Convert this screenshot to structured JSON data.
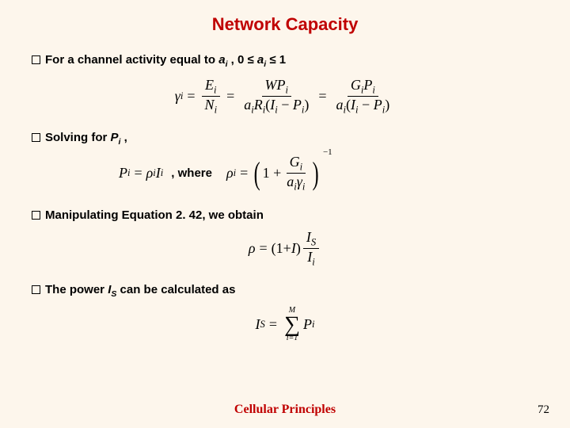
{
  "colors": {
    "background": "#fdf6ec",
    "title": "#c00000",
    "text": "#000000",
    "footer": "#c00000"
  },
  "fonts": {
    "body_family": "Arial",
    "math_family": "Times New Roman",
    "title_size_pt": 22,
    "bullet_size_pt": 15,
    "math_size_pt": 18,
    "footer_size_pt": 16
  },
  "title": "Network Capacity",
  "bullets": {
    "b1_prefix": "For a channel activity equal to ",
    "b1_var": "a",
    "b1_sub": "i",
    "b1_mid": " , 0 ≤ ",
    "b1_var2": "a",
    "b1_sub2": "i",
    "b1_suffix": " ≤ 1",
    "b2_prefix": "Solving for ",
    "b2_var": "P",
    "b2_sub": "i",
    "b2_suffix": " ,",
    "b3": "Manipulating Equation 2. 42, we obtain",
    "b4_prefix": "The power ",
    "b4_var": "I",
    "b4_sub": "S",
    "b4_suffix": " can be calculated as"
  },
  "eq1": {
    "lhs_var": "γ",
    "lhs_sub": "i",
    "f1_num_var": "E",
    "f1_num_sub": "i",
    "f1_den_var": "N",
    "f1_den_sub": "i",
    "f2_num_a": "W",
    "f2_num_b": "P",
    "f2_num_sub": "i",
    "f2_den_a": "a",
    "f2_den_a_sub": "i",
    "f2_den_b": "R",
    "f2_den_b_sub": "i",
    "f2_den_c": "I",
    "f2_den_c_sub": "i",
    "f2_den_d": "P",
    "f2_den_d_sub": "i",
    "f3_num_a": "G",
    "f3_num_a_sub": "i",
    "f3_num_b": "P",
    "f3_num_b_sub": "i",
    "f3_den_a": "a",
    "f3_den_a_sub": "i",
    "f3_den_b": "I",
    "f3_den_b_sub": "i",
    "f3_den_c": "P",
    "f3_den_c_sub": "i"
  },
  "eq2": {
    "lhs_a": "P",
    "lhs_a_sub": "i",
    "rhs_a": "ρ",
    "rhs_a_sub": "i",
    "rhs_b": "I",
    "rhs_b_sub": "i",
    "where": ", where",
    "rho": "ρ",
    "rho_sub": "i",
    "inner_one": "1",
    "inner_frac_num_a": "G",
    "inner_frac_num_sub": "i",
    "inner_frac_den_a": "a",
    "inner_frac_den_a_sub": "i",
    "inner_frac_den_b": "γ",
    "inner_frac_den_b_sub": "i",
    "exp": "−1"
  },
  "eq3": {
    "lhs": "ρ",
    "rhs_a": "1",
    "rhs_b": "I",
    "frac_num": "I",
    "frac_num_sub": "S",
    "frac_den": "I",
    "frac_den_sub": "i"
  },
  "eq4": {
    "lhs": "I",
    "lhs_sub": "S",
    "sum_top": "M",
    "sum_bot": "i=1",
    "term": "P",
    "term_sub": "i"
  },
  "footer": "Cellular Principles",
  "page": "72"
}
